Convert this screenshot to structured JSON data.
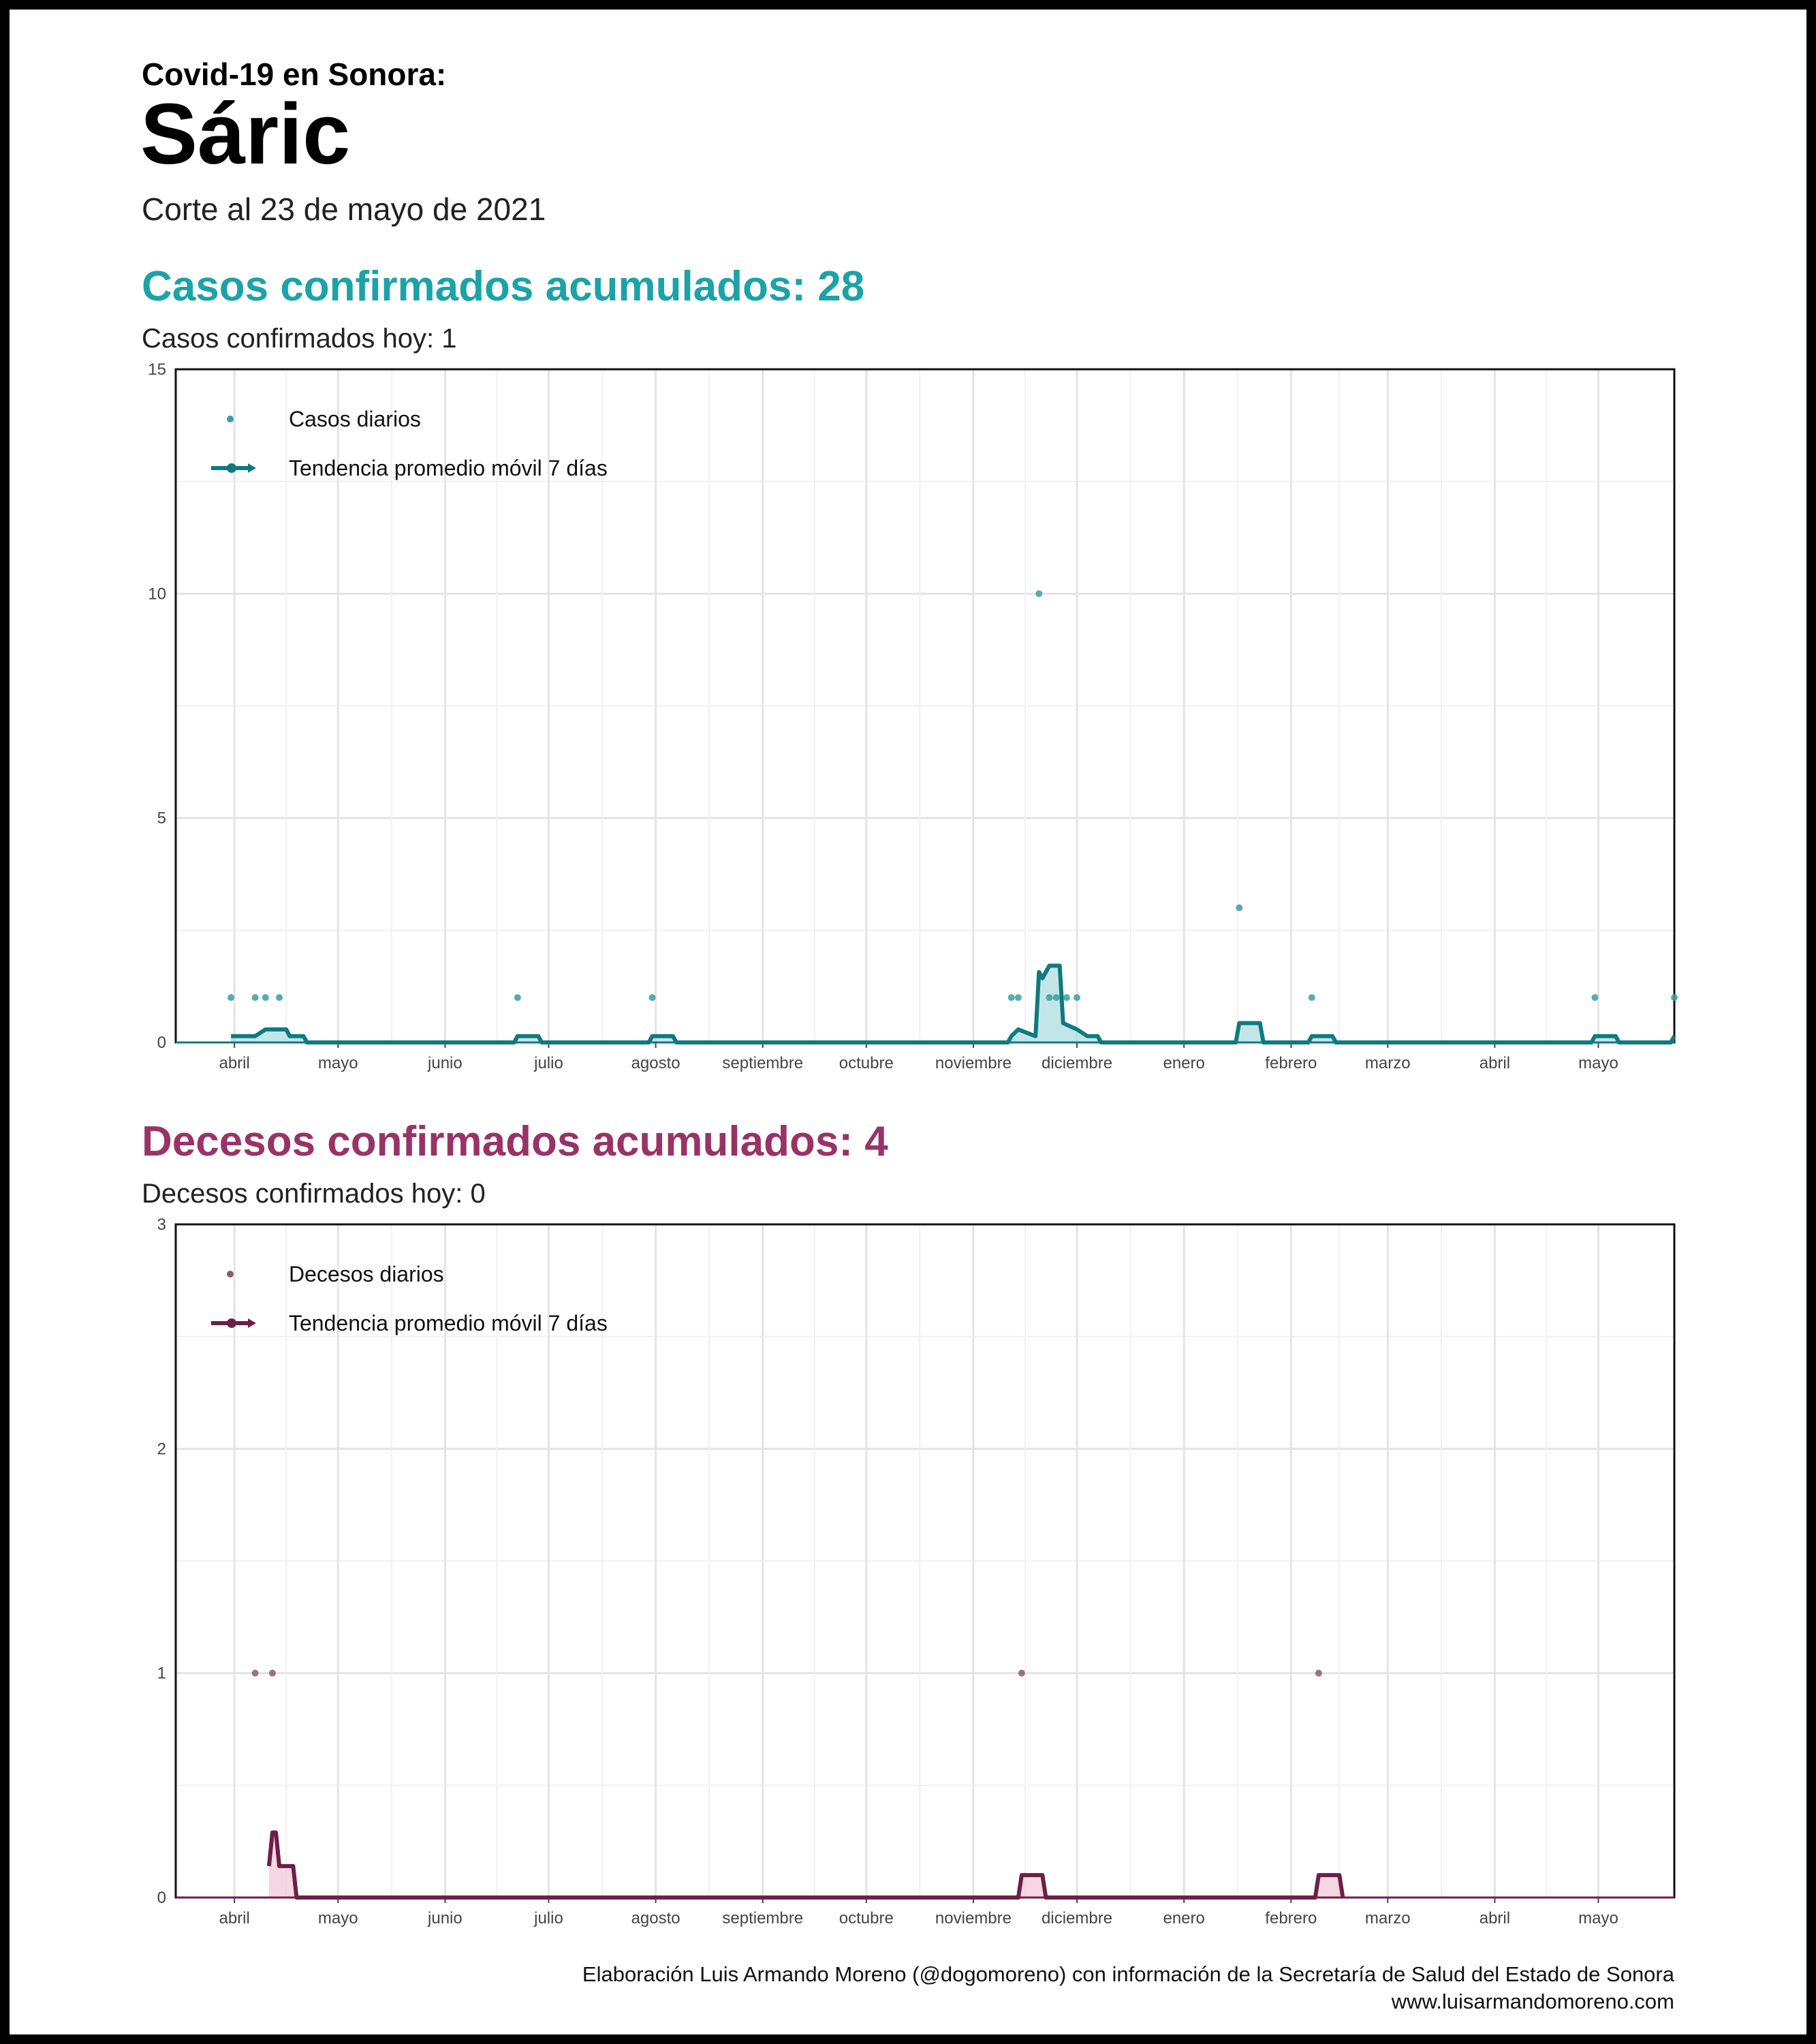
{
  "header": {
    "kicker": "Covid-19 en Sonora:",
    "place": "Sáric",
    "cutoff": "Corte al 23 de mayo de 2021"
  },
  "cases": {
    "title": "Casos confirmados acumulados: 28",
    "subtitle": "Casos confirmados hoy: 1",
    "color": "#1aa3a8",
    "line_color": "#0f7a80",
    "fill_color": "#a8dcde"
  },
  "deaths": {
    "title": "Decesos confirmados acumulados: 4",
    "subtitle": "Decesos confirmados hoy: 0",
    "color": "#993366",
    "line_color": "#6e1f48",
    "fill_color": "#f2c4d6"
  },
  "footer": {
    "credit": "Elaboración Luis Armando Moreno (@dogomoreno) con información de la Secretaría de Salud del Estado de Sonora",
    "site": "www.luisarmandomoreno.com"
  },
  "chart_data": [
    {
      "id": "cases",
      "type": "line",
      "x_type": "date",
      "xlim": [
        "2020-03-15",
        "2021-05-23"
      ],
      "ylim": [
        0,
        15
      ],
      "yticks": [
        0,
        5,
        10,
        15
      ],
      "xticks": [
        {
          "date": "2020-04-01",
          "label": "abril"
        },
        {
          "date": "2020-05-01",
          "label": "mayo"
        },
        {
          "date": "2020-06-01",
          "label": "junio"
        },
        {
          "date": "2020-07-01",
          "label": "julio"
        },
        {
          "date": "2020-08-01",
          "label": "agosto"
        },
        {
          "date": "2020-09-01",
          "label": "septiembre"
        },
        {
          "date": "2020-10-01",
          "label": "octubre"
        },
        {
          "date": "2020-11-01",
          "label": "noviembre"
        },
        {
          "date": "2020-12-01",
          "label": "diciembre"
        },
        {
          "date": "2021-01-01",
          "label": "enero"
        },
        {
          "date": "2021-02-01",
          "label": "febrero"
        },
        {
          "date": "2021-03-01",
          "label": "marzo"
        },
        {
          "date": "2021-04-01",
          "label": "abril"
        },
        {
          "date": "2021-05-01",
          "label": "mayo"
        }
      ],
      "grid": true,
      "legend": "top-left",
      "legend_items": {
        "points": "Casos diarios",
        "line": "Tendencia promedio móvil 7 días"
      },
      "daily": [
        {
          "date": "2020-03-31",
          "value": 1
        },
        {
          "date": "2020-04-07",
          "value": 1
        },
        {
          "date": "2020-04-10",
          "value": 1
        },
        {
          "date": "2020-04-14",
          "value": 1
        },
        {
          "date": "2020-06-22",
          "value": 1
        },
        {
          "date": "2020-07-31",
          "value": 1
        },
        {
          "date": "2020-11-12",
          "value": 1
        },
        {
          "date": "2020-11-14",
          "value": 1
        },
        {
          "date": "2020-11-20",
          "value": 10
        },
        {
          "date": "2020-11-23",
          "value": 1
        },
        {
          "date": "2020-11-25",
          "value": 1
        },
        {
          "date": "2020-11-28",
          "value": 1
        },
        {
          "date": "2020-12-01",
          "value": 1
        },
        {
          "date": "2021-01-17",
          "value": 3
        },
        {
          "date": "2021-02-07",
          "value": 1
        },
        {
          "date": "2021-04-30",
          "value": 1
        },
        {
          "date": "2021-05-23",
          "value": 1
        }
      ],
      "trend": [
        {
          "date": "2020-03-31",
          "value": 0.14
        },
        {
          "date": "2020-04-07",
          "value": 0.14
        },
        {
          "date": "2020-04-10",
          "value": 0.29
        },
        {
          "date": "2020-04-16",
          "value": 0.29
        },
        {
          "date": "2020-04-17",
          "value": 0.14
        },
        {
          "date": "2020-04-21",
          "value": 0.14
        },
        {
          "date": "2020-04-22",
          "value": 0
        },
        {
          "date": "2020-06-21",
          "value": 0
        },
        {
          "date": "2020-06-22",
          "value": 0.14
        },
        {
          "date": "2020-06-28",
          "value": 0.14
        },
        {
          "date": "2020-06-29",
          "value": 0
        },
        {
          "date": "2020-07-30",
          "value": 0
        },
        {
          "date": "2020-07-31",
          "value": 0.14
        },
        {
          "date": "2020-08-06",
          "value": 0.14
        },
        {
          "date": "2020-08-07",
          "value": 0
        },
        {
          "date": "2020-11-11",
          "value": 0
        },
        {
          "date": "2020-11-12",
          "value": 0.14
        },
        {
          "date": "2020-11-14",
          "value": 0.29
        },
        {
          "date": "2020-11-19",
          "value": 0.14
        },
        {
          "date": "2020-11-20",
          "value": 1.57
        },
        {
          "date": "2020-11-21",
          "value": 1.43
        },
        {
          "date": "2020-11-23",
          "value": 1.71
        },
        {
          "date": "2020-11-26",
          "value": 1.71
        },
        {
          "date": "2020-11-27",
          "value": 0.43
        },
        {
          "date": "2020-12-01",
          "value": 0.29
        },
        {
          "date": "2020-12-04",
          "value": 0.14
        },
        {
          "date": "2020-12-07",
          "value": 0.14
        },
        {
          "date": "2020-12-08",
          "value": 0
        },
        {
          "date": "2021-01-16",
          "value": 0
        },
        {
          "date": "2021-01-17",
          "value": 0.43
        },
        {
          "date": "2021-01-23",
          "value": 0.43
        },
        {
          "date": "2021-01-24",
          "value": 0
        },
        {
          "date": "2021-02-06",
          "value": 0
        },
        {
          "date": "2021-02-07",
          "value": 0.14
        },
        {
          "date": "2021-02-13",
          "value": 0.14
        },
        {
          "date": "2021-02-14",
          "value": 0
        },
        {
          "date": "2021-04-29",
          "value": 0
        },
        {
          "date": "2021-04-30",
          "value": 0.14
        },
        {
          "date": "2021-05-06",
          "value": 0.14
        },
        {
          "date": "2021-05-07",
          "value": 0
        },
        {
          "date": "2021-05-22",
          "value": 0
        },
        {
          "date": "2021-05-23",
          "value": 0.14
        }
      ]
    },
    {
      "id": "deaths",
      "type": "line",
      "x_type": "date",
      "xlim": [
        "2020-03-15",
        "2021-05-23"
      ],
      "ylim": [
        0,
        3
      ],
      "yticks": [
        0,
        1,
        2,
        3
      ],
      "xticks": [
        {
          "date": "2020-04-01",
          "label": "abril"
        },
        {
          "date": "2020-05-01",
          "label": "mayo"
        },
        {
          "date": "2020-06-01",
          "label": "junio"
        },
        {
          "date": "2020-07-01",
          "label": "julio"
        },
        {
          "date": "2020-08-01",
          "label": "agosto"
        },
        {
          "date": "2020-09-01",
          "label": "septiembre"
        },
        {
          "date": "2020-10-01",
          "label": "octubre"
        },
        {
          "date": "2020-11-01",
          "label": "noviembre"
        },
        {
          "date": "2020-12-01",
          "label": "diciembre"
        },
        {
          "date": "2021-01-01",
          "label": "enero"
        },
        {
          "date": "2021-02-01",
          "label": "febrero"
        },
        {
          "date": "2021-03-01",
          "label": "marzo"
        },
        {
          "date": "2021-04-01",
          "label": "abril"
        },
        {
          "date": "2021-05-01",
          "label": "mayo"
        }
      ],
      "grid": true,
      "legend": "top-left",
      "legend_items": {
        "points": "Decesos diarios",
        "line": "Tendencia promedio móvil 7 días"
      },
      "daily": [
        {
          "date": "2020-04-07",
          "value": 1
        },
        {
          "date": "2020-04-12",
          "value": 1
        },
        {
          "date": "2020-11-15",
          "value": 1
        },
        {
          "date": "2021-02-09",
          "value": 1
        }
      ],
      "trend": [
        {
          "date": "2020-04-11",
          "value": 0.14
        },
        {
          "date": "2020-04-12",
          "value": 0.29
        },
        {
          "date": "2020-04-13",
          "value": 0.29
        },
        {
          "date": "2020-04-14",
          "value": 0.14
        },
        {
          "date": "2020-04-18",
          "value": 0.14
        },
        {
          "date": "2020-04-19",
          "value": 0
        },
        {
          "date": "2020-11-14",
          "value": 0
        },
        {
          "date": "2020-11-15",
          "value": 0.1
        },
        {
          "date": "2020-11-21",
          "value": 0.1
        },
        {
          "date": "2020-11-22",
          "value": 0
        },
        {
          "date": "2021-02-08",
          "value": 0
        },
        {
          "date": "2021-02-09",
          "value": 0.1
        },
        {
          "date": "2021-02-15",
          "value": 0.1
        },
        {
          "date": "2021-02-16",
          "value": 0
        }
      ]
    }
  ]
}
